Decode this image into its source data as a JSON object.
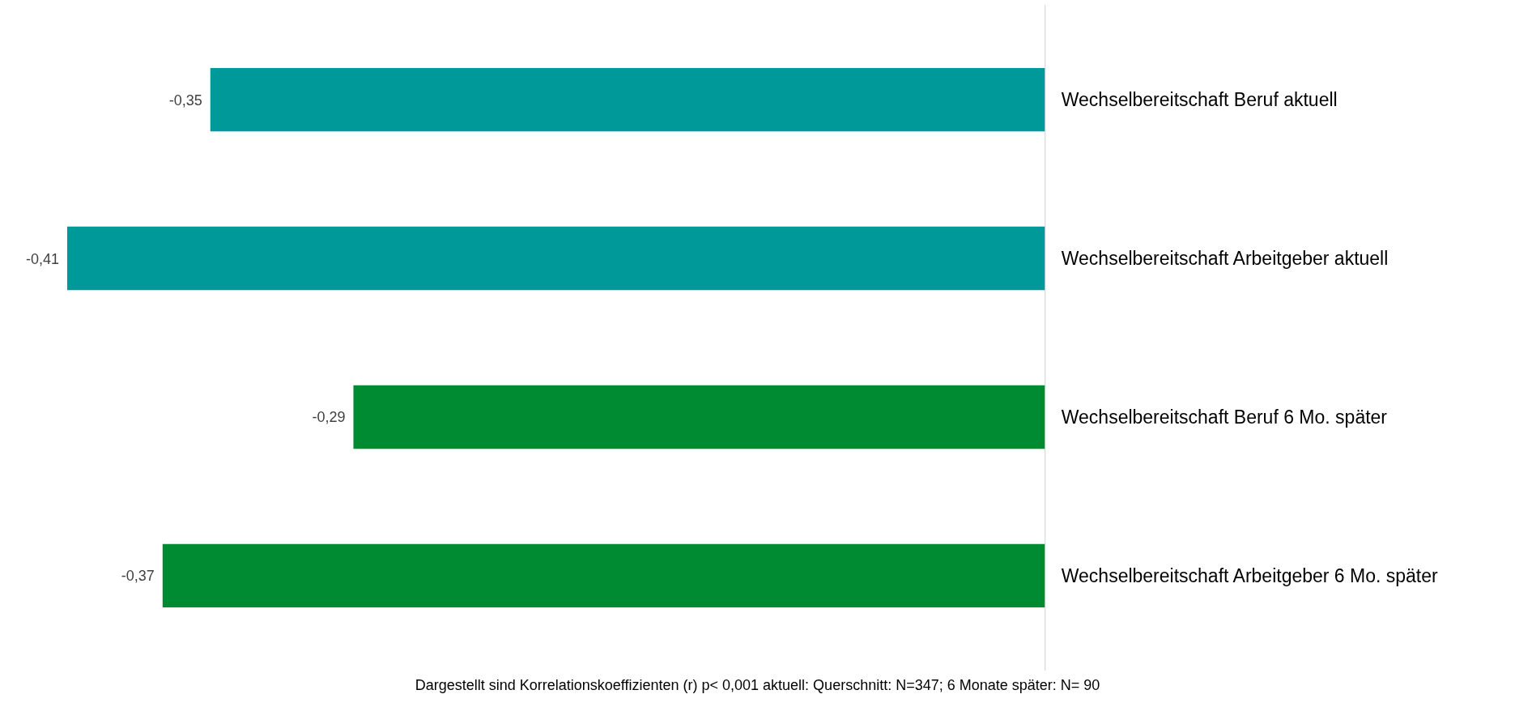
{
  "chart_data": {
    "type": "bar",
    "orientation": "horizontal",
    "categories": [
      "Wechselbereitschaft Beruf aktuell",
      "Wechselbereitschaft Arbeitgeber aktuell",
      "Wechselbereitschaft Beruf 6 Mo. später",
      "Wechselbereitschaft Arbeitgeber 6 Mo. später"
    ],
    "values": [
      -0.35,
      -0.41,
      -0.29,
      -0.37
    ],
    "colors": [
      "#009999",
      "#009999",
      "#008a32",
      "#008a32"
    ],
    "value_labels": [
      "-0,35",
      "-0,41",
      "-0,29",
      "-0,37"
    ],
    "annotations": [
      "Dargestellt sind Korrelationskoeffizienten (r) p< 0,001   aktuell: Querschnitt: N=347; 6 Monate später: N= 90"
    ],
    "grid": false
  }
}
